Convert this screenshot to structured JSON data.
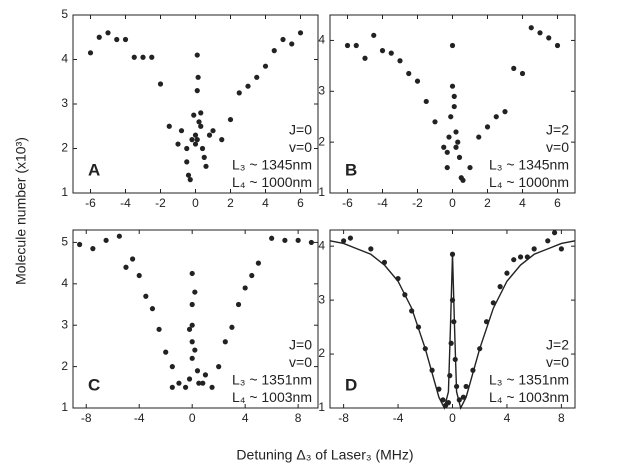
{
  "ylabel": "Molecule number (x10³)",
  "xlabel": "Detuning Δ₃ of Laser₃ (MHz)",
  "chart_data": [
    {
      "type": "scatter",
      "label": "A",
      "notes": [
        "J=0",
        "v=0",
        "L₃ ~ 1345nm",
        "L₄ ~ 1000nm"
      ],
      "xlim": [
        -7,
        7
      ],
      "ylim": [
        1,
        5
      ],
      "xticks": [
        -6,
        -4,
        -2,
        0,
        2,
        4,
        6
      ],
      "yticks": [
        1,
        2,
        3,
        4,
        5
      ],
      "series": [
        {
          "color": "#222222",
          "x": [
            -6,
            -5.5,
            -5,
            -4.5,
            -4,
            -3.5,
            -3,
            -2.5,
            -2,
            -1.5,
            -1,
            -0.8,
            -0.5,
            -0.4,
            -0.3,
            -0.2,
            -0.1,
            0,
            0,
            0.1,
            0.1,
            0.15,
            0.1,
            0.2,
            0.3,
            0.4,
            0.5,
            0.6,
            0.8,
            1,
            1.5,
            2,
            2.5,
            3,
            3.5,
            4,
            4.5,
            5,
            5.5,
            6,
            -0.5,
            0.3
          ],
          "values": [
            4.15,
            4.5,
            4.6,
            4.45,
            4.45,
            4.05,
            4.05,
            4.05,
            3.45,
            2.5,
            2.1,
            2.4,
            1.7,
            1.4,
            1.3,
            2.2,
            2.75,
            2.3,
            2.1,
            2.2,
            3.3,
            3.6,
            4.1,
            2.6,
            2.5,
            2.0,
            1.8,
            1.6,
            2.3,
            2.4,
            2.2,
            2.65,
            3.25,
            3.4,
            3.6,
            3.85,
            4.2,
            4.45,
            4.35,
            4.6,
            2.0,
            2.8
          ]
        }
      ]
    },
    {
      "type": "scatter",
      "label": "B",
      "notes": [
        "J=2",
        "v=0",
        "L₃ ~ 1345nm",
        "L₄ ~ 1000nm"
      ],
      "xlim": [
        -7,
        7
      ],
      "ylim": [
        1,
        4.5
      ],
      "xticks": [
        -6,
        -4,
        -2,
        0,
        2,
        4,
        6
      ],
      "yticks": [
        1,
        2,
        3,
        4
      ],
      "series": [
        {
          "color": "#222222",
          "x": [
            -6,
            -5.5,
            -5,
            -4.5,
            -4,
            -3.5,
            -3,
            -2.5,
            -2,
            -1.5,
            -1,
            -0.5,
            -0.3,
            -0.2,
            -0.1,
            0,
            0,
            0.1,
            0.2,
            0.2,
            0.3,
            0.5,
            0.6,
            0.4,
            1,
            1.5,
            2,
            2.5,
            3,
            3.5,
            4,
            4.5,
            5,
            5.5,
            6,
            -0.3,
            0.1
          ],
          "values": [
            3.9,
            3.9,
            3.65,
            4.1,
            3.8,
            3.75,
            3.6,
            3.35,
            3.2,
            2.8,
            2.4,
            1.9,
            1.5,
            2.1,
            2.5,
            3.1,
            3.9,
            2.7,
            2.2,
            1.9,
            2.0,
            1.3,
            1.25,
            1.7,
            1.5,
            2.1,
            2.3,
            2.5,
            2.6,
            3.45,
            3.35,
            4.25,
            4.15,
            4.05,
            3.9,
            1.8,
            2.9
          ]
        }
      ]
    },
    {
      "type": "scatter",
      "label": "C",
      "notes": [
        "J=0",
        "v=0",
        "L₃ ~ 1351nm",
        "L₄ ~ 1003nm"
      ],
      "xlim": [
        -9,
        9.5
      ],
      "ylim": [
        1,
        5.3
      ],
      "xticks": [
        -8,
        -4,
        0,
        4,
        8
      ],
      "yticks": [
        1,
        2,
        3,
        4,
        5
      ],
      "series": [
        {
          "color": "#222222",
          "x": [
            -8.5,
            -7.5,
            -6.5,
            -5.5,
            -5,
            -4.5,
            -4,
            -3.5,
            -3,
            -2.5,
            -2,
            -1.5,
            -1,
            -0.5,
            -0.2,
            0,
            0,
            0,
            0,
            0,
            0.2,
            0.2,
            -0.2,
            0.4,
            0.5,
            1,
            1.5,
            2,
            2.5,
            3,
            3.5,
            4,
            4.5,
            5,
            6,
            7,
            8,
            9,
            -1.5,
            0.8
          ],
          "values": [
            4.95,
            4.85,
            5.05,
            5.15,
            4.4,
            4.6,
            4.2,
            3.7,
            3.4,
            2.9,
            2.35,
            2.0,
            1.6,
            1.5,
            1.7,
            2.2,
            2.6,
            3.0,
            3.5,
            4.25,
            3.8,
            2.4,
            2.9,
            1.9,
            1.6,
            1.8,
            1.5,
            2.0,
            2.6,
            2.95,
            3.5,
            3.9,
            4.2,
            4.5,
            5.1,
            5.05,
            5.05,
            5.0,
            1.5,
            1.6
          ]
        }
      ]
    },
    {
      "type": "scatter",
      "label": "D",
      "notes": [
        "J=2",
        "v=0",
        "L₃ ~ 1351nm",
        "L₄ ~ 1003nm"
      ],
      "xlim": [
        -9,
        9
      ],
      "ylim": [
        1,
        4.3
      ],
      "xticks": [
        -8,
        -4,
        0,
        4,
        8
      ],
      "yticks": [
        1,
        2,
        3,
        4
      ],
      "series": [
        {
          "color": "#222222",
          "x": [
            -8,
            -7.5,
            -6,
            -5,
            -4,
            -3.5,
            -3,
            -2.5,
            -2,
            -1.5,
            -1,
            -0.7,
            -0.5,
            -0.3,
            -0.2,
            -0.1,
            0,
            0,
            0.1,
            0.2,
            0.3,
            0.5,
            0.8,
            1,
            1.5,
            2,
            2.5,
            3,
            3.5,
            4,
            4.5,
            5,
            5.5,
            6,
            7,
            7.5,
            8
          ],
          "values": [
            4.1,
            4.15,
            3.95,
            3.7,
            3.4,
            3.1,
            2.8,
            2.5,
            2.1,
            1.7,
            1.35,
            1.15,
            1.05,
            1.1,
            1.6,
            2.2,
            3.0,
            3.85,
            2.6,
            1.9,
            1.4,
            1.15,
            1.2,
            1.4,
            1.7,
            2.1,
            2.6,
            2.95,
            3.25,
            3.5,
            3.75,
            3.8,
            3.8,
            3.95,
            4.1,
            4.25,
            3.95
          ]
        },
        {
          "mode": "line",
          "color": "#222222",
          "x": [
            -9,
            -8,
            -7,
            -6,
            -5,
            -4,
            -3,
            -2,
            -1.5,
            -1,
            -0.6,
            -0.3,
            -0.15,
            0,
            0.15,
            0.3,
            0.6,
            1,
            1.5,
            2,
            3,
            4,
            5,
            6,
            7,
            8,
            9
          ],
          "values": [
            4.1,
            4.05,
            3.95,
            3.85,
            3.65,
            3.35,
            2.85,
            2.1,
            1.65,
            1.2,
            1.0,
            1.3,
            2.5,
            3.85,
            2.5,
            1.3,
            1.0,
            1.2,
            1.65,
            2.1,
            2.85,
            3.35,
            3.65,
            3.85,
            3.95,
            4.05,
            4.1
          ]
        }
      ]
    }
  ]
}
